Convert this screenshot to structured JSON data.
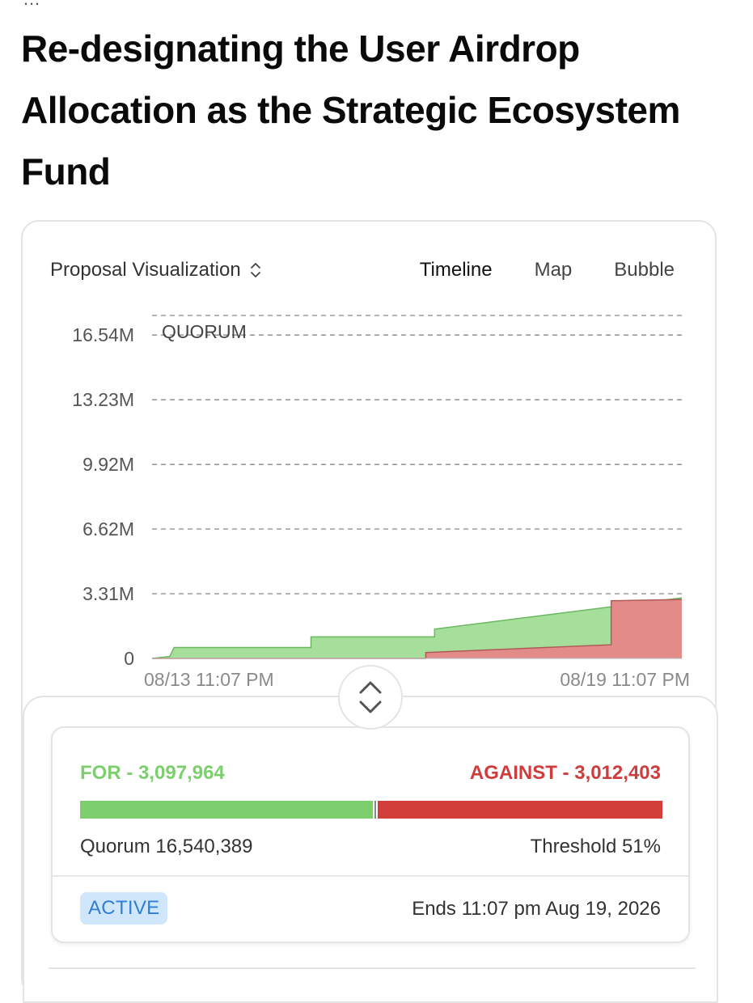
{
  "page": {
    "breadcrumb": "…",
    "title": "Re-designating the User Airdrop Allocation as the Strategic Ecosystem Fund"
  },
  "visualization": {
    "title": "Proposal Visualization",
    "tabs": [
      {
        "label": "Timeline",
        "active": true
      },
      {
        "label": "Map",
        "active": false
      },
      {
        "label": "Bubble",
        "active": false
      }
    ]
  },
  "chart_data": {
    "type": "area",
    "quorum_label": "QUORUM",
    "y_ticks": [
      "16.54M",
      "13.23M",
      "9.92M",
      "6.62M",
      "3.31M",
      "0"
    ],
    "ylim": [
      0,
      17540000
    ],
    "quorum": 16540389,
    "x_ticks": [
      "08/13 11:07 PM",
      "08/19 11:07 PM"
    ],
    "x_range_days": [
      0,
      6
    ],
    "series": [
      {
        "name": "For",
        "color": "#a6df9c",
        "stroke": "#6bb860",
        "points": [
          [
            0,
            0
          ],
          [
            0.2,
            100000
          ],
          [
            0.25,
            560000
          ],
          [
            1.8,
            560000
          ],
          [
            1.8,
            1100000
          ],
          [
            3.2,
            1100000
          ],
          [
            3.2,
            1500000
          ],
          [
            6,
            3097964
          ]
        ]
      },
      {
        "name": "Against",
        "color": "#e28b89",
        "stroke": "#b05a56",
        "points": [
          [
            0,
            0
          ],
          [
            3.1,
            0
          ],
          [
            3.1,
            300000
          ],
          [
            5.2,
            700000
          ],
          [
            5.2,
            2950000
          ],
          [
            6,
            3012403
          ]
        ]
      }
    ]
  },
  "votes": {
    "for_label": "FOR - 3,097,964",
    "against_label": "AGAINST - 3,012,403",
    "for_value": 3097964,
    "against_value": 3012403,
    "quorum_text": "Quorum 16,540,389",
    "threshold_text": "Threshold 51%",
    "status": "ACTIVE",
    "ends_text": "Ends 11:07 pm Aug 19, 2026"
  },
  "colors": {
    "for": "#7dcf6e",
    "against": "#d23f3a",
    "badge_bg": "#cfe6fb",
    "badge_text": "#2f7fd1"
  }
}
